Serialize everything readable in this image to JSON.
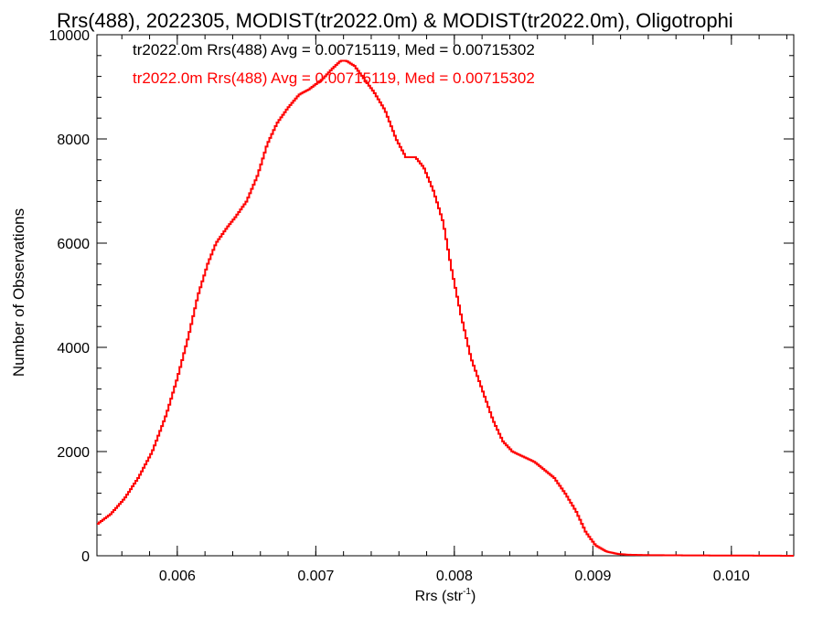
{
  "chart_data": {
    "type": "line",
    "title": "Rrs(488), 2022305, MODIST(tr2022.0m) & MODIST(tr2022.0m), Oligotrophi",
    "xlabel_base": "Rrs (str",
    "xlabel_sup": "-1",
    "xlabel_end": ")",
    "ylabel": "Number of Observations",
    "xlim": [
      0.00542,
      0.01045
    ],
    "ylim": [
      0,
      10000
    ],
    "x_ticks": [
      0.006,
      0.007,
      0.008,
      0.009,
      0.01
    ],
    "x_tick_labels": [
      "0.006",
      "0.007",
      "0.008",
      "0.009",
      "0.010"
    ],
    "y_ticks": [
      0,
      2000,
      4000,
      6000,
      8000,
      10000
    ],
    "y_tick_labels": [
      "0",
      "2000",
      "4000",
      "6000",
      "8000",
      "10000"
    ],
    "x_minor_step": 0.0002,
    "y_minor_step": 400,
    "grid": false,
    "annotations": [
      {
        "text": "tr2022.0m Rrs(488) Avg = 0.00715119, Med = 0.00715302",
        "color": "#000000"
      },
      {
        "text": "tr2022.0m Rrs(488) Avg = 0.00715119, Med = 0.00715302",
        "color": "#ff0000"
      }
    ],
    "series_color": "#ff0000",
    "x": [
      0.00542,
      0.00552,
      0.00562,
      0.00572,
      0.00582,
      0.00592,
      0.006,
      0.00608,
      0.00615,
      0.00622,
      0.00628,
      0.00636,
      0.00642,
      0.0065,
      0.00658,
      0.00665,
      0.00672,
      0.0068,
      0.00688,
      0.00695,
      0.007,
      0.00705,
      0.00712,
      0.00718,
      0.00722,
      0.00728,
      0.00735,
      0.00742,
      0.0075,
      0.00758,
      0.00765,
      0.00772,
      0.00778,
      0.00785,
      0.00792,
      0.00798,
      0.00805,
      0.00812,
      0.0082,
      0.00828,
      0.00835,
      0.00842,
      0.0085,
      0.00858,
      0.00865,
      0.00872,
      0.0088,
      0.00888,
      0.00895,
      0.00902,
      0.0091,
      0.00918,
      0.00925,
      0.0094,
      0.0096,
      0.0099,
      0.0102,
      0.01045
    ],
    "y": [
      600,
      800,
      1100,
      1500,
      2000,
      2700,
      3400,
      4200,
      5000,
      5600,
      6000,
      6300,
      6500,
      6800,
      7300,
      7900,
      8300,
      8600,
      8850,
      8950,
      9050,
      9150,
      9350,
      9500,
      9500,
      9400,
      9150,
      8900,
      8550,
      8000,
      7650,
      7650,
      7450,
      7000,
      6400,
      5500,
      4600,
      3800,
      3200,
      2600,
      2200,
      2000,
      1900,
      1800,
      1650,
      1500,
      1200,
      850,
      450,
      200,
      80,
      35,
      20,
      12,
      8,
      5,
      3,
      0
    ]
  }
}
